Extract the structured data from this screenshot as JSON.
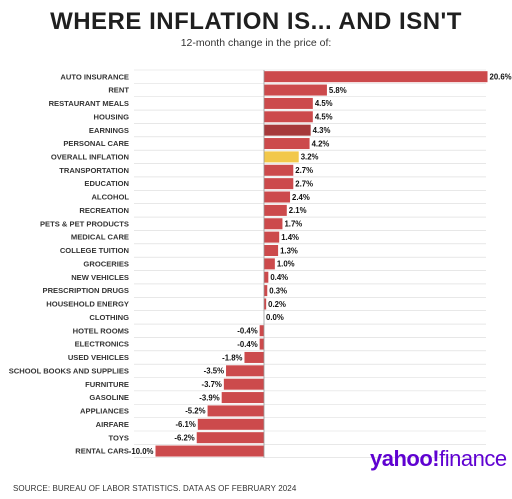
{
  "chart_data": {
    "type": "bar",
    "orientation": "horizontal",
    "title": "WHERE INFLATION IS... AND ISN'T",
    "subtitle": "12-month change in the price of:",
    "value_suffix": "%",
    "xlim": [
      -10,
      20.6
    ],
    "categories": [
      "AUTO INSURANCE",
      "RENT",
      "RESTAURANT MEALS",
      "HOUSING",
      "EARNINGS",
      "PERSONAL CARE",
      "OVERALL INFLATION",
      "TRANSPORTATION",
      "EDUCATION",
      "ALCOHOL",
      "RECREATION",
      "PETS & PET PRODUCTS",
      "MEDICAL CARE",
      "COLLEGE TUITION",
      "GROCERIES",
      "NEW VEHICLES",
      "PRESCRIPTION DRUGS",
      "HOUSEHOLD ENERGY",
      "CLOTHING",
      "HOTEL ROOMS",
      "ELECTRONICS",
      "USED VEHICLES",
      "SCHOOL BOOKS AND SUPPLIES",
      "FURNITURE",
      "GASOLINE",
      "APPLIANCES",
      "AIRFARE",
      "TOYS",
      "RENTAL CARS"
    ],
    "values": [
      20.6,
      5.8,
      4.5,
      4.5,
      4.3,
      4.2,
      3.2,
      2.7,
      2.7,
      2.4,
      2.1,
      1.7,
      1.4,
      1.3,
      1.0,
      0.4,
      0.3,
      0.2,
      0.0,
      -0.4,
      -0.4,
      -1.8,
      -3.5,
      -3.7,
      -3.9,
      -5.2,
      -6.1,
      -6.2,
      -10.0
    ],
    "value_labels": [
      "20.6%",
      "5.8%",
      "4.5%",
      "4.5%",
      "4.3%",
      "4.2%",
      "3.2%",
      "2.7%",
      "2.7%",
      "2.4%",
      "2.1%",
      "1.7%",
      "1.4%",
      "1.3%",
      "1.0%",
      "0.4%",
      "0.3%",
      "0.2%",
      "0.0%",
      "-0.4%",
      "-0.4%",
      "-1.8%",
      "-3.5%",
      "-3.7%",
      "-3.9%",
      "-5.2%",
      "-6.1%",
      "-6.2%",
      "-10.0%"
    ],
    "colors": {
      "default": "#cc4a4c",
      "highlight_earnings": "#a6393b",
      "highlight_overall": "#f2c84b",
      "grid": "#d9d9d9",
      "axis": "#999999"
    },
    "highlights": {
      "EARNINGS": "highlight_earnings",
      "OVERALL INFLATION": "highlight_overall"
    },
    "grid": true
  },
  "footer": {
    "source": "SOURCE: BUREAU OF LABOR STATISTICS. DATA AS OF FEBRUARY 2024"
  },
  "logo": {
    "text_yahoo": "yahoo",
    "text_bang": "!",
    "text_finance": "finance",
    "color": "#5f01d1"
  }
}
